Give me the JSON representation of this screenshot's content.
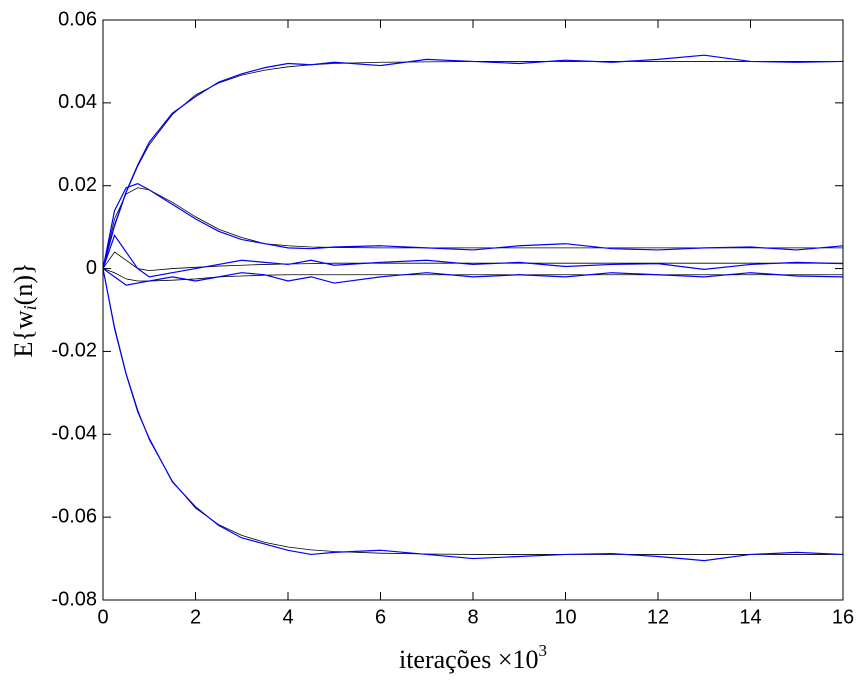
{
  "chart_data": {
    "type": "line",
    "xlabel": "iterações ×10",
    "xlabel_exponent": "3",
    "ylabel": "E{w",
    "ylabel_subscript": "i",
    "ylabel_end": "(n)}",
    "x": [
      0,
      0.25,
      0.5,
      0.75,
      1,
      1.5,
      2,
      2.5,
      3,
      3.5,
      4,
      4.5,
      5,
      6,
      7,
      8,
      9,
      10,
      11,
      12,
      13,
      14,
      15,
      16
    ],
    "xlim": [
      0,
      16
    ],
    "xticks": [
      0,
      2,
      4,
      6,
      8,
      10,
      12,
      14,
      16
    ],
    "ylim": [
      -0.08,
      0.06
    ],
    "yticks": [
      -0.08,
      -0.06,
      -0.04,
      -0.02,
      0,
      0.02,
      0.04,
      0.06
    ],
    "series": [
      {
        "color": "#000000",
        "values": [
          0,
          0.0102,
          0.0183,
          0.0247,
          0.0299,
          0.0372,
          0.0419,
          0.0448,
          0.0467,
          0.0479,
          0.0487,
          0.0492,
          0.0495,
          0.0498,
          0.0499,
          0.05,
          0.05,
          0.05,
          0.05,
          0.05,
          0.05,
          0.05,
          0.05,
          0.05
        ]
      },
      {
        "color": "#000000",
        "values": [
          0,
          -0.0141,
          -0.0253,
          -0.0341,
          -0.0413,
          -0.0513,
          -0.0578,
          -0.0618,
          -0.0644,
          -0.0661,
          -0.0672,
          -0.0679,
          -0.0683,
          -0.0687,
          -0.0689,
          -0.069,
          -0.069,
          -0.069,
          -0.069,
          -0.069,
          -0.069,
          -0.069,
          -0.069,
          -0.069
        ]
      },
      {
        "color": "#000000",
        "values": [
          0,
          0.012,
          0.018,
          0.0195,
          0.019,
          0.016,
          0.0125,
          0.0095,
          0.0075,
          0.006,
          0.0055,
          0.0052,
          0.0051,
          0.005,
          0.005,
          0.005,
          0.005,
          0.005,
          0.005,
          0.005,
          0.005,
          0.005,
          0.005,
          0.005
        ]
      },
      {
        "color": "#000000",
        "values": [
          0,
          0.004,
          0.002,
          0,
          -0.0005,
          0,
          0.0003,
          0.0006,
          0.0008,
          0.001,
          0.0011,
          0.0012,
          0.0013,
          0.0013,
          0.0013,
          0.0013,
          0.0013,
          0.0013,
          0.0013,
          0.0013,
          0.0013,
          0.0013,
          0.0013,
          0.0013
        ]
      },
      {
        "color": "#000000",
        "values": [
          0,
          -0.001,
          -0.0025,
          -0.003,
          -0.003,
          -0.0028,
          -0.0025,
          -0.002,
          -0.0018,
          -0.0016,
          -0.0015,
          -0.0015,
          -0.0015,
          -0.0015,
          -0.0015,
          -0.0015,
          -0.0015,
          -0.0015,
          -0.0015,
          -0.0015,
          -0.0015,
          -0.0015,
          -0.0015,
          -0.0015
        ]
      },
      {
        "color": "#0000ff",
        "values": [
          0,
          0.0105,
          0.0185,
          0.025,
          0.0305,
          0.0375,
          0.0415,
          0.045,
          0.047,
          0.0485,
          0.0495,
          0.0492,
          0.0498,
          0.049,
          0.0505,
          0.05,
          0.0495,
          0.0503,
          0.0498,
          0.0505,
          0.0515,
          0.05,
          0.0498,
          0.05
        ]
      },
      {
        "color": "#0000ff",
        "values": [
          0,
          -0.0145,
          -0.0255,
          -0.0345,
          -0.041,
          -0.0515,
          -0.0575,
          -0.062,
          -0.065,
          -0.0665,
          -0.068,
          -0.069,
          -0.0685,
          -0.068,
          -0.069,
          -0.07,
          -0.0695,
          -0.069,
          -0.0688,
          -0.0695,
          -0.0705,
          -0.069,
          -0.0685,
          -0.069
        ]
      },
      {
        "color": "#0000ff",
        "values": [
          0,
          0.014,
          0.0195,
          0.0205,
          0.019,
          0.0155,
          0.012,
          0.009,
          0.007,
          0.006,
          0.005,
          0.0048,
          0.0052,
          0.0055,
          0.005,
          0.0045,
          0.0055,
          0.006,
          0.0048,
          0.0045,
          0.005,
          0.0052,
          0.0045,
          0.0055
        ]
      },
      {
        "color": "#0000ff",
        "values": [
          0,
          0.008,
          0.004,
          0,
          -0.002,
          -0.001,
          0,
          0.001,
          0.002,
          0.0015,
          0.001,
          0.002,
          0.0008,
          0.0015,
          0.002,
          0.001,
          0.0015,
          0.0005,
          0.001,
          0.0012,
          -0.0002,
          0.001,
          0.0015,
          0.0012
        ]
      },
      {
        "color": "#0000ff",
        "values": [
          0,
          -0.002,
          -0.004,
          -0.0035,
          -0.003,
          -0.002,
          -0.003,
          -0.002,
          -0.001,
          -0.0015,
          -0.003,
          -0.002,
          -0.0035,
          -0.002,
          -0.001,
          -0.002,
          -0.0015,
          -0.002,
          -0.001,
          -0.0015,
          -0.002,
          -0.001,
          -0.0018,
          -0.002
        ]
      }
    ]
  }
}
